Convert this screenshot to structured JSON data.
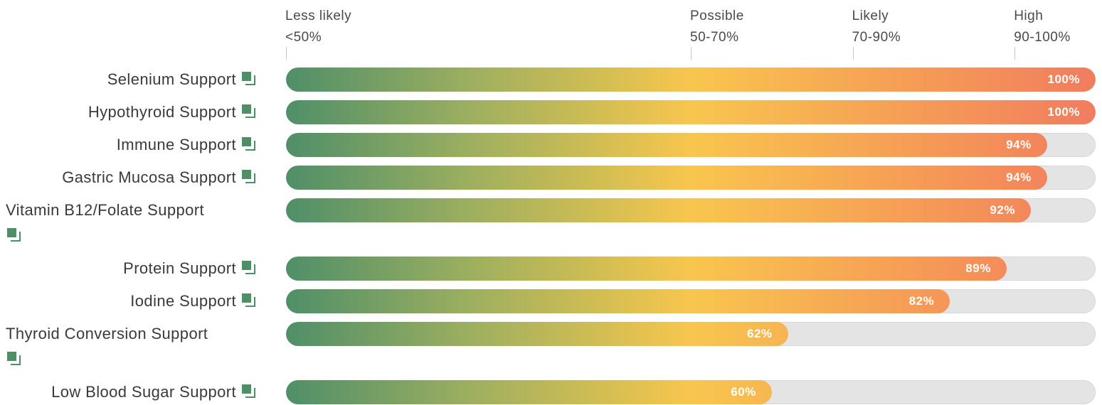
{
  "chart_data": {
    "type": "bar",
    "orientation": "horizontal",
    "xlim": [
      0,
      100
    ],
    "scale_bands": [
      {
        "name": "Less likely",
        "range": "<50%",
        "start": 0
      },
      {
        "name": "Possible",
        "range": "50-70%",
        "start": 50
      },
      {
        "name": "Likely",
        "range": "70-90%",
        "start": 70
      },
      {
        "name": "High",
        "range": "90-100%",
        "start": 90
      }
    ],
    "categories": [
      "Selenium Support",
      "Hypothyroid Support",
      "Immune Support",
      "Gastric Mucosa Support",
      "Vitamin B12/Folate Support",
      "Protein Support",
      "Iodine Support",
      "Thyroid Conversion Support",
      "Low Blood Sugar Support"
    ],
    "values": [
      100,
      100,
      94,
      94,
      92,
      89,
      82,
      62,
      60
    ],
    "value_labels": [
      "100%",
      "100%",
      "94%",
      "94%",
      "92%",
      "89%",
      "82%",
      "62%",
      "60%"
    ]
  },
  "icon": "info-copy-icon",
  "colors": {
    "gradient": [
      "#4f8f68",
      "#f8c64e",
      "#f17c5e"
    ],
    "track": "#e4e4e4",
    "icon": "#4f8f66"
  }
}
